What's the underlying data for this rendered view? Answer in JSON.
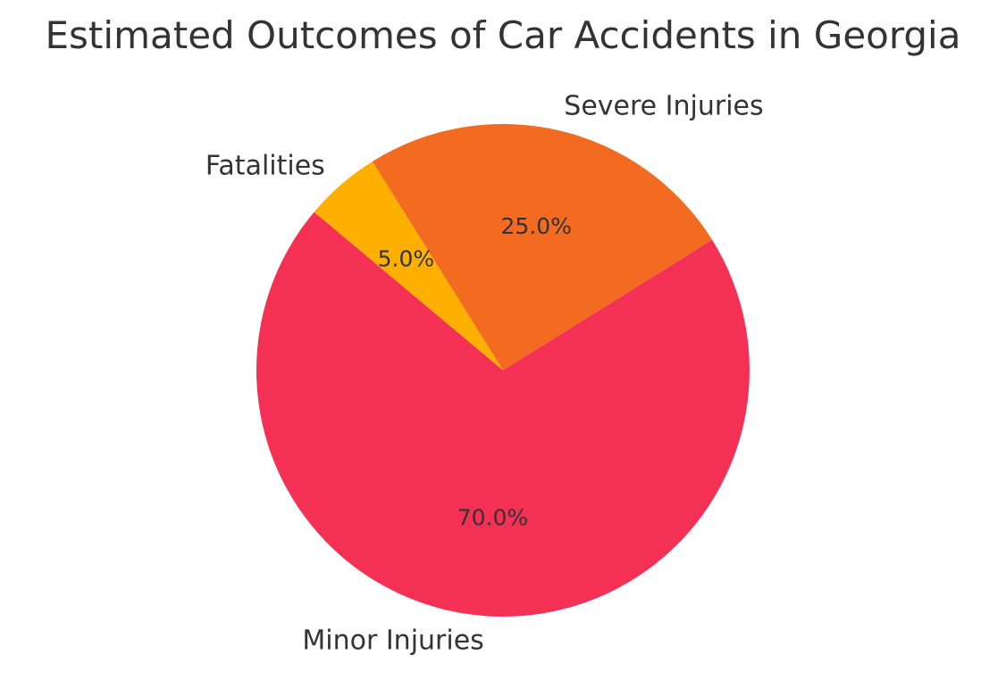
{
  "chart_data": {
    "type": "pie",
    "title": "Estimated Outcomes of Car Accidents in Georgia",
    "slices": [
      {
        "label": "Minor Injuries",
        "value": 70.0,
        "pct_label": "70.0%",
        "color": "#F43155"
      },
      {
        "label": "Severe Injuries",
        "value": 25.0,
        "pct_label": "25.0%",
        "color": "#F26B21"
      },
      {
        "label": "Fatalities",
        "value": 5.0,
        "pct_label": "5.0%",
        "color": "#FFAF00"
      }
    ]
  }
}
